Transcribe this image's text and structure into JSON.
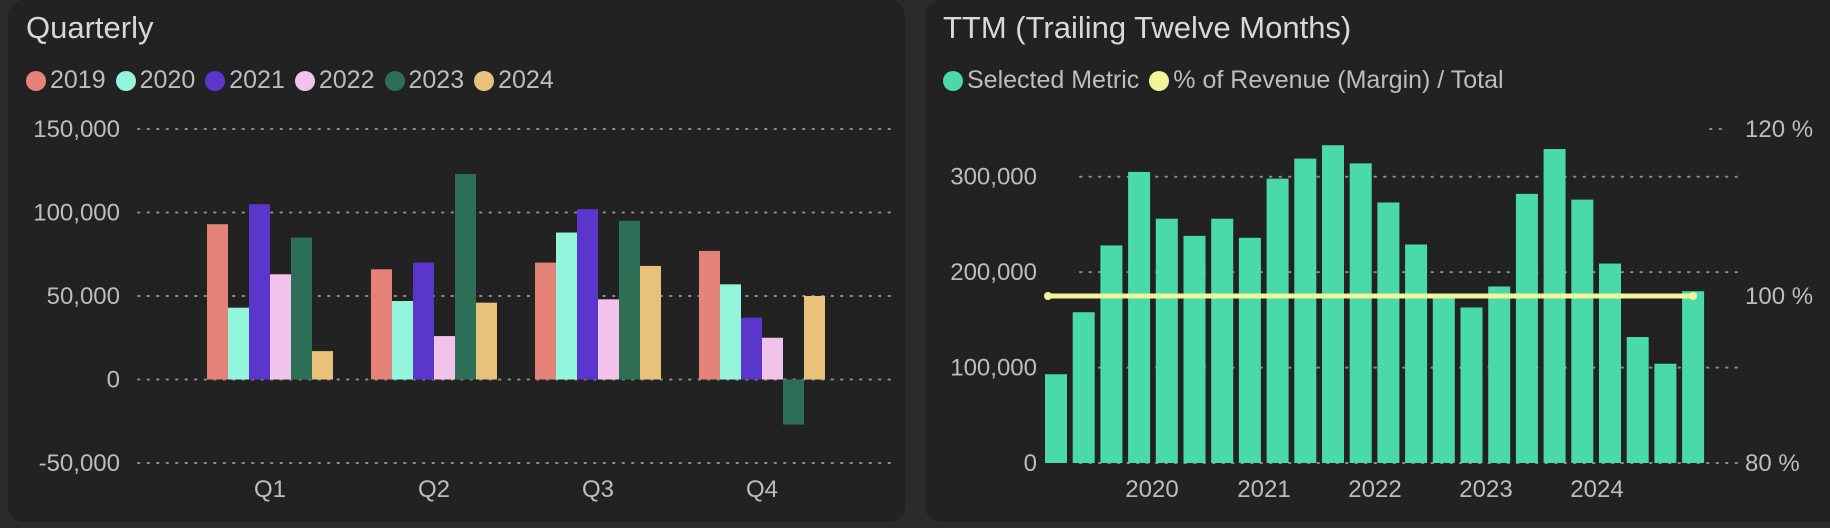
{
  "chart_data": [
    {
      "type": "bar",
      "title": "Quarterly",
      "categories": [
        "Q1",
        "Q2",
        "Q3",
        "Q4"
      ],
      "series": [
        {
          "name": "2019",
          "color": "#e5827a",
          "values": [
            93000,
            66000,
            70000,
            77000
          ]
        },
        {
          "name": "2020",
          "color": "#93f5dc",
          "values": [
            43000,
            47000,
            88000,
            57000
          ]
        },
        {
          "name": "2021",
          "color": "#5a36cc",
          "values": [
            105000,
            70000,
            102000,
            37000
          ]
        },
        {
          "name": "2022",
          "color": "#f1c2ea",
          "values": [
            63000,
            26000,
            48000,
            25000
          ]
        },
        {
          "name": "2023",
          "color": "#2c6f56",
          "values": [
            85000,
            123000,
            95000,
            -27000
          ]
        },
        {
          "name": "2024",
          "color": "#e8c27a",
          "values": [
            17000,
            46000,
            68000,
            50000
          ]
        }
      ],
      "yticks": [
        "150,000",
        "100,000",
        "50,000",
        "0",
        "-50,000"
      ],
      "ylim": [
        -50000,
        150000
      ],
      "grid": true,
      "legend": "top-left"
    },
    {
      "type": "bar",
      "title": "TTM (Trailing Twelve Months)",
      "legend": "top-left",
      "legend_entries": [
        {
          "name": "Selected Metric",
          "color": "#4ad9ab"
        },
        {
          "name": "% of Revenue (Margin) / Total",
          "color": "#f0f59a"
        }
      ],
      "bar_color": "#4ad9ab",
      "line_color": "#f0f59a",
      "xticks": [
        "2020",
        "2021",
        "2022",
        "2023",
        "2024"
      ],
      "yticks_left": [
        "300,000",
        "200,000",
        "100,000",
        "0"
      ],
      "yticks_right": [
        "120 %",
        "100 %",
        "80 %"
      ],
      "ylim_left": [
        0,
        350000
      ],
      "ylim_right": [
        80,
        120
      ],
      "values": [
        93000,
        158000,
        228000,
        305000,
        256000,
        238000,
        256000,
        236000,
        298000,
        319000,
        333000,
        314000,
        273000,
        229000,
        174000,
        163000,
        185000,
        282000,
        329000,
        276000,
        209000,
        132000,
        104000,
        180000
      ],
      "margin_line": 100,
      "grid": true
    }
  ]
}
